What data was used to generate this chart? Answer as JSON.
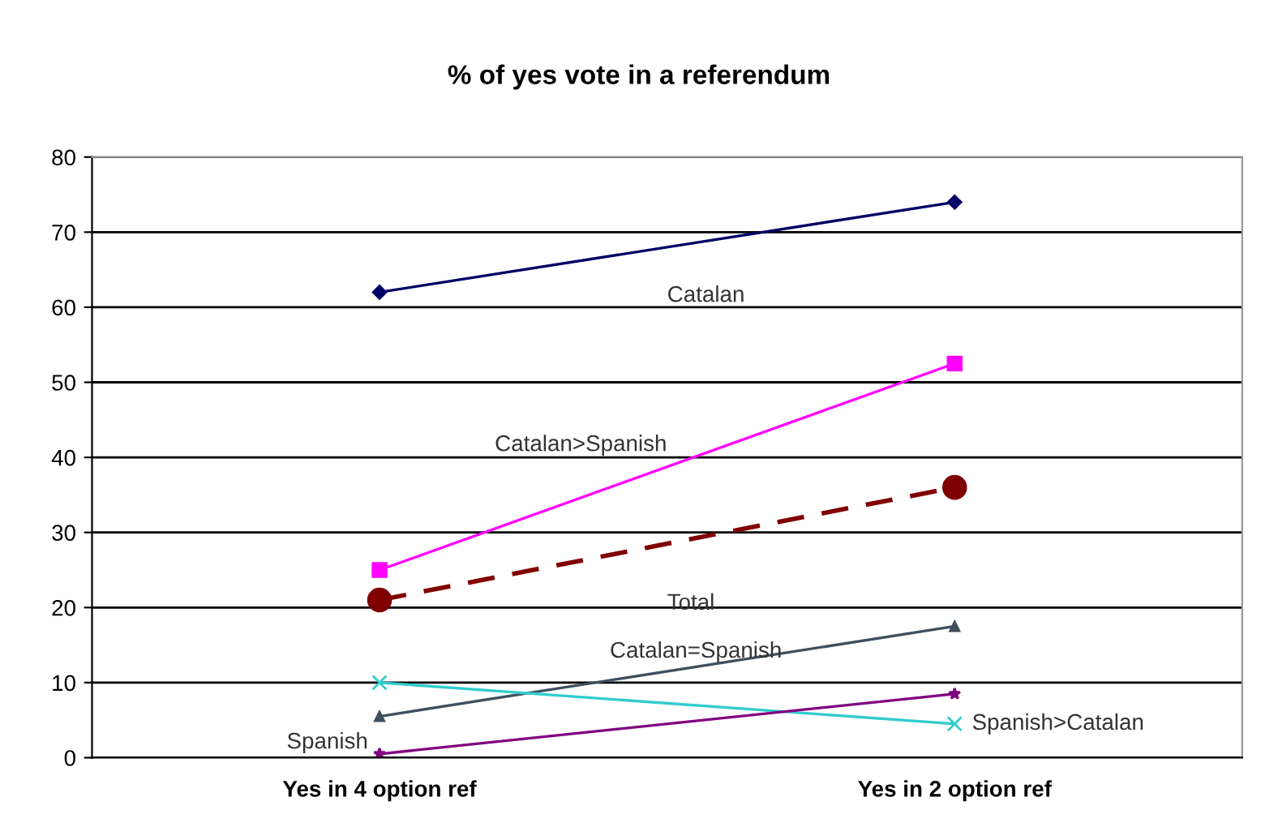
{
  "chart_data": {
    "type": "line",
    "title": "% of yes vote in a referendum",
    "categories": [
      "Yes in 4 option ref",
      "Yes in 2 option ref"
    ],
    "series": [
      {
        "name": "Catalan",
        "color": "#000066",
        "values": [
          62,
          74
        ],
        "marker": "diamond"
      },
      {
        "name": "Catalan>Spanish",
        "color": "#ff00ff",
        "values": [
          25,
          52.5
        ],
        "marker": "square"
      },
      {
        "name": "Total",
        "color": "#800000",
        "values": [
          21,
          36
        ],
        "marker": "circle",
        "line_style": "dashed"
      },
      {
        "name": "Catalan=Spanish",
        "color": "#3f4f5f",
        "values": [
          5.5,
          17.5
        ],
        "marker": "triangle"
      },
      {
        "name": "Spanish>Catalan",
        "color": "#33cccc",
        "values": [
          10,
          4.5
        ],
        "marker": "cross"
      },
      {
        "name": "Spanish",
        "color": "#800080",
        "values": [
          0.5,
          8.5
        ],
        "marker": "star"
      }
    ],
    "ylim": [
      0,
      80
    ],
    "yticks": [
      0,
      10,
      20,
      30,
      40,
      50,
      60,
      70,
      80
    ],
    "grid": "y",
    "legend": false
  }
}
